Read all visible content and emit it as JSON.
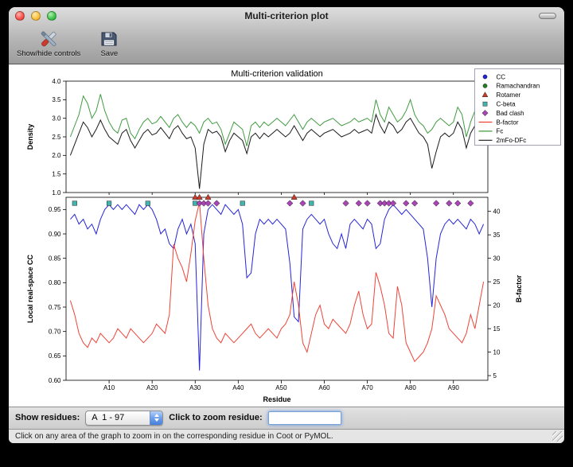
{
  "window": {
    "title": "Multi-criterion plot"
  },
  "toolbar": {
    "buttons": [
      {
        "label": "Show/hide controls"
      },
      {
        "label": "Save"
      }
    ]
  },
  "chart_data": [
    {
      "type": "line",
      "title": "Multi-criterion validation",
      "ylabel": "Density",
      "ylim": [
        1.0,
        4.0
      ],
      "yticks": [
        "1.0",
        "1.5",
        "2.0",
        "2.5",
        "3.0",
        "3.5",
        "4.0"
      ],
      "xlim": [
        0,
        98
      ],
      "grid": false,
      "series": [
        {
          "name": "Fc",
          "color": "#3f9b3f",
          "values": [
            2.5,
            2.8,
            3.1,
            3.6,
            3.4,
            3.0,
            3.2,
            3.65,
            3.2,
            2.9,
            2.7,
            2.6,
            2.95,
            3.0,
            2.6,
            2.45,
            2.7,
            2.9,
            3.0,
            2.85,
            2.9,
            3.05,
            2.9,
            2.75,
            3.0,
            3.1,
            2.9,
            2.75,
            2.9,
            2.8,
            2.6,
            2.9,
            3.0,
            2.85,
            2.9,
            2.7,
            2.3,
            2.6,
            2.9,
            2.8,
            2.7,
            2.25,
            2.8,
            2.9,
            2.75,
            2.9,
            2.8,
            2.9,
            3.0,
            2.9,
            2.8,
            2.95,
            3.1,
            2.9,
            2.7,
            2.9,
            3.0,
            2.9,
            2.8,
            2.9,
            2.95,
            3.0,
            2.9,
            2.8,
            2.85,
            2.9,
            3.0,
            2.9,
            2.95,
            3.0,
            2.9,
            3.5,
            3.1,
            2.9,
            3.3,
            3.1,
            2.9,
            3.0,
            3.2,
            3.5,
            3.1,
            2.9,
            2.8,
            2.6,
            2.7,
            2.9,
            3.0,
            2.9,
            2.8,
            2.9,
            3.3,
            3.1,
            2.5,
            2.9,
            3.2,
            3.3,
            3.1
          ]
        },
        {
          "name": "2mFo-DFc",
          "color": "#1a1a1a",
          "values": [
            2.0,
            2.3,
            2.6,
            2.9,
            2.75,
            2.5,
            2.7,
            2.95,
            2.7,
            2.5,
            2.4,
            2.3,
            2.6,
            2.7,
            2.4,
            2.2,
            2.4,
            2.6,
            2.7,
            2.55,
            2.6,
            2.75,
            2.6,
            2.45,
            2.7,
            2.8,
            2.6,
            2.45,
            2.5,
            2.2,
            1.1,
            2.3,
            2.7,
            2.6,
            2.65,
            2.5,
            2.1,
            2.4,
            2.6,
            2.5,
            2.4,
            2.05,
            2.5,
            2.6,
            2.45,
            2.6,
            2.5,
            2.6,
            2.7,
            2.6,
            2.5,
            2.6,
            2.8,
            2.6,
            2.4,
            2.6,
            2.7,
            2.6,
            2.5,
            2.6,
            2.65,
            2.7,
            2.6,
            2.5,
            2.55,
            2.6,
            2.7,
            2.6,
            2.65,
            2.7,
            2.6,
            3.1,
            2.8,
            2.6,
            2.9,
            2.8,
            2.6,
            2.7,
            2.9,
            3.0,
            2.8,
            2.6,
            2.5,
            2.3,
            1.65,
            2.1,
            2.5,
            2.6,
            2.5,
            2.6,
            2.9,
            2.7,
            2.2,
            2.6,
            2.8,
            2.9,
            2.7
          ]
        }
      ]
    },
    {
      "type": "line",
      "xlabel": "Residue",
      "ylabel_left": "Local real-space CC",
      "ylabel_right": "B-factor",
      "ylim_left": [
        0.6,
        0.975
      ],
      "yticks_left": [
        "0.60",
        "0.65",
        "0.70",
        "0.75",
        "0.80",
        "0.85",
        "0.90",
        "0.95"
      ],
      "ylim_right": [
        4,
        43
      ],
      "yticks_right": [
        "5",
        "10",
        "15",
        "20",
        "25",
        "30",
        "35",
        "40"
      ],
      "xlim": [
        0,
        98
      ],
      "xticks": [
        {
          "v": 10,
          "label": "A10"
        },
        {
          "v": 20,
          "label": "A20"
        },
        {
          "v": 30,
          "label": "A30"
        },
        {
          "v": 40,
          "label": "A40"
        },
        {
          "v": 50,
          "label": "A50"
        },
        {
          "v": 60,
          "label": "A60"
        },
        {
          "v": 70,
          "label": "A70"
        },
        {
          "v": 80,
          "label": "A80"
        },
        {
          "v": 90,
          "label": "A90"
        }
      ],
      "grid": false,
      "series": [
        {
          "name": "CC",
          "axis": "left",
          "color": "#2424d8",
          "values": [
            0.93,
            0.94,
            0.92,
            0.93,
            0.91,
            0.92,
            0.9,
            0.93,
            0.95,
            0.96,
            0.95,
            0.96,
            0.95,
            0.96,
            0.95,
            0.94,
            0.96,
            0.95,
            0.96,
            0.95,
            0.93,
            0.9,
            0.91,
            0.88,
            0.87,
            0.91,
            0.93,
            0.9,
            0.92,
            0.88,
            0.62,
            0.9,
            0.95,
            0.96,
            0.95,
            0.94,
            0.96,
            0.95,
            0.94,
            0.95,
            0.92,
            0.81,
            0.82,
            0.9,
            0.93,
            0.92,
            0.93,
            0.92,
            0.93,
            0.92,
            0.91,
            0.84,
            0.73,
            0.72,
            0.91,
            0.93,
            0.94,
            0.93,
            0.92,
            0.93,
            0.9,
            0.88,
            0.87,
            0.9,
            0.87,
            0.92,
            0.93,
            0.92,
            0.91,
            0.93,
            0.92,
            0.87,
            0.88,
            0.93,
            0.95,
            0.96,
            0.95,
            0.94,
            0.95,
            0.94,
            0.93,
            0.92,
            0.91,
            0.85,
            0.75,
            0.85,
            0.9,
            0.92,
            0.93,
            0.92,
            0.93,
            0.92,
            0.91,
            0.93,
            0.92,
            0.9,
            0.92
          ]
        },
        {
          "name": "B-factor",
          "axis": "right",
          "color": "#ee4438",
          "values": [
            21,
            18,
            14,
            12,
            11,
            13,
            12,
            14,
            13,
            12,
            13,
            15,
            14,
            13,
            15,
            14,
            13,
            12,
            13,
            14,
            16,
            15,
            14,
            18,
            33,
            30,
            28,
            25,
            31,
            38,
            42,
            30,
            20,
            15,
            13,
            12,
            14,
            13,
            12,
            13,
            14,
            15,
            16,
            14,
            13,
            14,
            15,
            14,
            13,
            15,
            16,
            18,
            25,
            20,
            12,
            10,
            14,
            18,
            20,
            16,
            15,
            17,
            16,
            15,
            14,
            16,
            20,
            23,
            18,
            15,
            16,
            27,
            24,
            20,
            14,
            13,
            24,
            20,
            12,
            10,
            8,
            9,
            10,
            12,
            15,
            22,
            20,
            18,
            15,
            14,
            13,
            12,
            14,
            18,
            15,
            20,
            25
          ]
        }
      ],
      "markers": [
        {
          "name": "Rotamer",
          "shape": "triangle",
          "color": "#d03828",
          "x": [
            30,
            31,
            33,
            53
          ]
        },
        {
          "name": "C-beta",
          "shape": "square",
          "color": "#40b5ad",
          "x": [
            2,
            10,
            19,
            30,
            41,
            57
          ]
        },
        {
          "name": "Bad clash",
          "shape": "diamond",
          "color": "#a844b4",
          "x": [
            31,
            32,
            33,
            35,
            52,
            55,
            65,
            68,
            70,
            73,
            74,
            75,
            76,
            79,
            81,
            86,
            89,
            91,
            94
          ]
        }
      ]
    }
  ],
  "legend": {
    "entries": [
      {
        "label": "CC",
        "type": "marker",
        "shape": "circle",
        "color": "#2424d8"
      },
      {
        "label": "Ramachandran",
        "type": "marker",
        "shape": "circle",
        "color": "#208020"
      },
      {
        "label": "Rotamer",
        "type": "marker",
        "shape": "triangle",
        "color": "#d03828"
      },
      {
        "label": "C-beta",
        "type": "marker",
        "shape": "square",
        "color": "#40b5ad"
      },
      {
        "label": "Bad clash",
        "type": "marker",
        "shape": "diamond",
        "color": "#a844b4"
      },
      {
        "label": "B-factor",
        "type": "line",
        "color": "#ee4438"
      },
      {
        "label": "Fc",
        "type": "line",
        "color": "#3f9b3f"
      },
      {
        "label": "2mFo-DFc",
        "type": "line",
        "color": "#1a1a1a"
      }
    ]
  },
  "controls": {
    "show_residues_label": "Show residues:",
    "chain_range_value": "A  1 - 97",
    "zoom_label": "Click to zoom residue:",
    "zoom_input_value": ""
  },
  "statusbar": {
    "text": "Click on any area of the graph to zoom in on the corresponding residue in Coot or PyMOL."
  }
}
